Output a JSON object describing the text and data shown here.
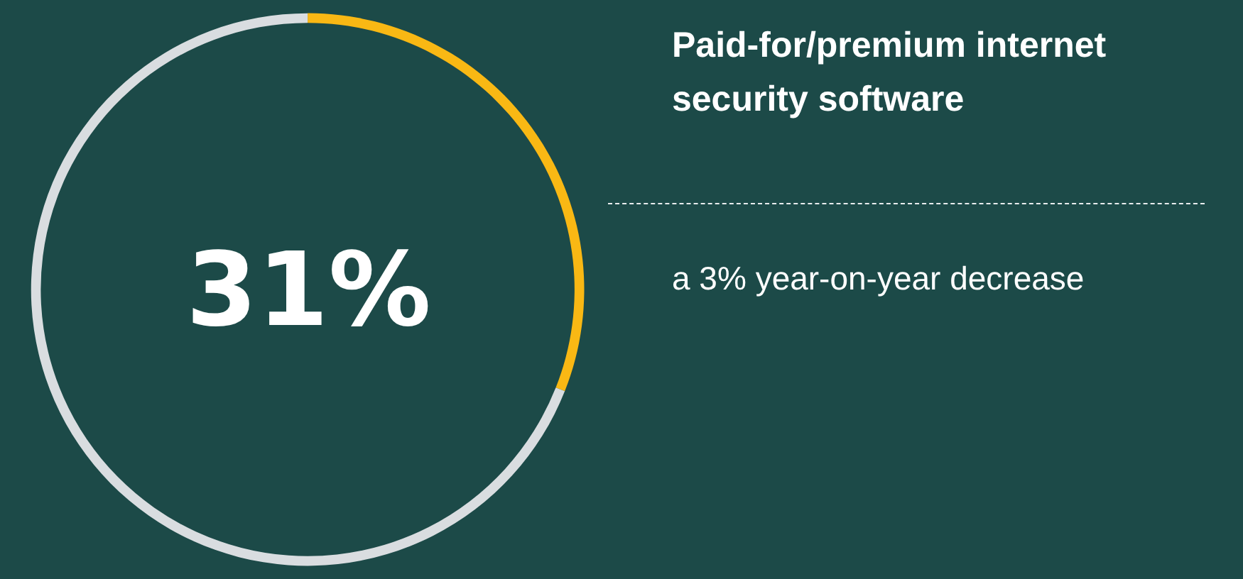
{
  "chart_data": {
    "type": "donut",
    "title": "Paid-for/premium internet security software",
    "subtitle": "a 3% year-on-year decrease",
    "categories": [
      null,
      null
    ],
    "values": [
      31,
      69
    ],
    "colors": [
      "#f9b814",
      "#d9dde0"
    ],
    "value_labels": [
      "31%",
      null
    ]
  }
}
